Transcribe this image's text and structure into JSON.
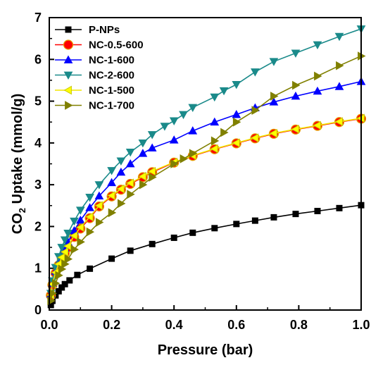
{
  "chart_data": {
    "type": "line",
    "xlabel": "Pressure (bar)",
    "ylabel_main": "CO",
    "ylabel_sub": "2",
    "ylabel_rest": " Uptake (mmol/g)",
    "xlim": [
      0.0,
      1.0
    ],
    "ylim": [
      0,
      7
    ],
    "xticks": [
      "0.0",
      "0.2",
      "0.4",
      "0.6",
      "0.8",
      "1.0"
    ],
    "yticks": [
      "0",
      "1",
      "2",
      "3",
      "4",
      "5",
      "6",
      "7"
    ],
    "legend_position": "top-left",
    "series": [
      {
        "name": "P-NPs",
        "color": "#000000",
        "marker": "square",
        "x": [
          0.005,
          0.01,
          0.02,
          0.03,
          0.04,
          0.05,
          0.065,
          0.09,
          0.13,
          0.2,
          0.26,
          0.33,
          0.4,
          0.46,
          0.53,
          0.6,
          0.66,
          0.72,
          0.79,
          0.86,
          0.93,
          1.0
        ],
        "y": [
          0.12,
          0.22,
          0.35,
          0.45,
          0.54,
          0.62,
          0.71,
          0.84,
          0.99,
          1.23,
          1.42,
          1.58,
          1.73,
          1.85,
          1.96,
          2.06,
          2.14,
          2.22,
          2.3,
          2.37,
          2.44,
          2.51
        ]
      },
      {
        "name": "NC-0.5-600",
        "color": "#ff0000",
        "marker": "circle",
        "x": [
          0.005,
          0.01,
          0.02,
          0.03,
          0.04,
          0.05,
          0.06,
          0.08,
          0.1,
          0.13,
          0.16,
          0.2,
          0.23,
          0.26,
          0.3,
          0.33,
          0.4,
          0.46,
          0.53,
          0.6,
          0.66,
          0.72,
          0.79,
          0.86,
          0.93,
          1.0
        ],
        "y": [
          0.35,
          0.6,
          0.88,
          1.07,
          1.23,
          1.36,
          1.5,
          1.75,
          1.95,
          2.2,
          2.48,
          2.72,
          2.88,
          3.02,
          3.18,
          3.3,
          3.53,
          3.69,
          3.85,
          3.99,
          4.11,
          4.22,
          4.32,
          4.41,
          4.5,
          4.58
        ]
      },
      {
        "name": "NC-1-600",
        "color": "#0000ff",
        "marker": "triangle-up",
        "x": [
          0.005,
          0.01,
          0.02,
          0.03,
          0.04,
          0.05,
          0.06,
          0.08,
          0.1,
          0.13,
          0.16,
          0.2,
          0.23,
          0.26,
          0.3,
          0.33,
          0.4,
          0.46,
          0.53,
          0.6,
          0.66,
          0.72,
          0.79,
          0.86,
          0.93,
          1.0
        ],
        "y": [
          0.38,
          0.64,
          0.93,
          1.15,
          1.32,
          1.48,
          1.63,
          1.9,
          2.15,
          2.45,
          2.73,
          3.05,
          3.3,
          3.5,
          3.75,
          3.88,
          4.07,
          4.29,
          4.5,
          4.68,
          4.84,
          4.98,
          5.12,
          5.24,
          5.35,
          5.47
        ]
      },
      {
        "name": "NC-2-600",
        "color": "#1a8a8a",
        "marker": "triangle-down",
        "x": [
          0.005,
          0.01,
          0.02,
          0.03,
          0.04,
          0.05,
          0.06,
          0.08,
          0.1,
          0.13,
          0.16,
          0.2,
          0.23,
          0.26,
          0.3,
          0.33,
          0.37,
          0.4,
          0.43,
          0.46,
          0.53,
          0.56,
          0.6,
          0.66,
          0.72,
          0.79,
          0.86,
          0.93,
          1.0
        ],
        "y": [
          0.4,
          0.7,
          1.02,
          1.28,
          1.5,
          1.68,
          1.84,
          2.13,
          2.39,
          2.7,
          3.0,
          3.34,
          3.57,
          3.78,
          4.0,
          4.2,
          4.4,
          4.53,
          4.68,
          4.85,
          5.1,
          5.25,
          5.4,
          5.7,
          5.95,
          6.15,
          6.35,
          6.55,
          6.73
        ]
      },
      {
        "name": "NC-1-500",
        "color": "#ffff00",
        "marker": "triangle-left",
        "x": [
          0.005,
          0.01,
          0.02,
          0.03,
          0.04,
          0.05,
          0.06,
          0.08,
          0.1,
          0.13,
          0.16,
          0.2,
          0.23,
          0.26,
          0.3,
          0.33,
          0.4,
          0.46,
          0.53,
          0.6,
          0.66,
          0.72,
          0.79,
          0.86,
          0.93,
          1.0
        ],
        "y": [
          0.36,
          0.62,
          0.9,
          1.1,
          1.26,
          1.39,
          1.53,
          1.78,
          1.98,
          2.23,
          2.5,
          2.74,
          2.9,
          3.04,
          3.2,
          3.32,
          3.54,
          3.7,
          3.86,
          4.0,
          4.12,
          4.23,
          4.33,
          4.42,
          4.51,
          4.59
        ]
      },
      {
        "name": "NC-1-700",
        "color": "#808000",
        "marker": "triangle-right",
        "x": [
          0.005,
          0.01,
          0.02,
          0.03,
          0.04,
          0.05,
          0.06,
          0.08,
          0.1,
          0.13,
          0.16,
          0.2,
          0.23,
          0.26,
          0.3,
          0.33,
          0.4,
          0.43,
          0.46,
          0.53,
          0.56,
          0.6,
          0.66,
          0.72,
          0.79,
          0.86,
          0.93,
          1.0
        ],
        "y": [
          0.22,
          0.4,
          0.64,
          0.83,
          0.98,
          1.1,
          1.22,
          1.45,
          1.63,
          1.87,
          2.1,
          2.33,
          2.55,
          2.77,
          3.0,
          3.18,
          3.5,
          3.62,
          3.75,
          4.05,
          4.25,
          4.5,
          4.78,
          5.12,
          5.38,
          5.6,
          5.85,
          6.08
        ]
      }
    ]
  }
}
